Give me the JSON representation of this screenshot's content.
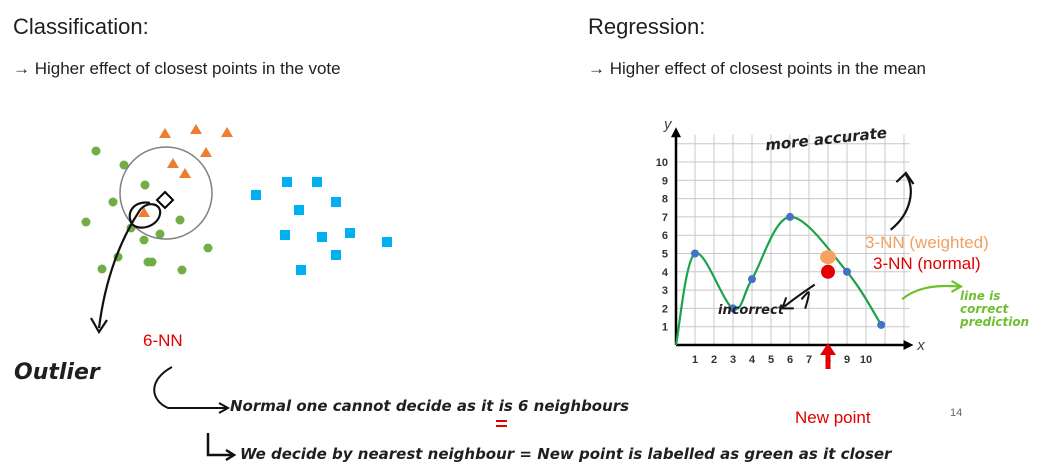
{
  "left": {
    "heading": "Classification:",
    "bullet": "→ Higher effect of closest points in the vote",
    "knn_label": "6-NN"
  },
  "right": {
    "heading": "Regression:",
    "bullet": "→ Higher effect of closest points in the mean",
    "label_weighted": "3-NN  (weighted)",
    "label_normal": "3-NN  (normal)",
    "new_point": "New point",
    "slide_number": "14"
  },
  "annotations": {
    "outlier": "Outlier",
    "more_accurate": "more accurate",
    "incorrect": "incorrect",
    "line_correct": [
      "line is",
      "correct",
      "prediction"
    ],
    "normal_note": "Normal one cannot decide as it is 6 neighbours",
    "nearest_note": "We decide by nearest neighbour = New point is labelled as green as it closer"
  },
  "colors": {
    "green_points": "#70ad47",
    "orange_points": "#ed7d31",
    "blue_points": "#00b0f0",
    "curve": "#1aa34a",
    "regression_points": "#4472c4",
    "red": "#e00000",
    "weighted": "#f4a460",
    "annotation_green": "#6fbf2f"
  },
  "chart_data": {
    "type": "line",
    "x_axis_label": "x",
    "y_axis_label": "y",
    "xticks": [
      "1",
      "2",
      "3",
      "4",
      "5",
      "6",
      "7",
      "8",
      "9",
      "10"
    ],
    "yticks": [
      "1",
      "2",
      "3",
      "4",
      "5",
      "6",
      "7",
      "8",
      "9",
      "10"
    ],
    "xlim": [
      0,
      11
    ],
    "ylim": [
      0,
      11
    ],
    "grid": true,
    "series": [
      {
        "points": [
          [
            0,
            0
          ],
          [
            1,
            5
          ],
          [
            3,
            2
          ],
          [
            4,
            3.6
          ],
          [
            6,
            7
          ],
          [
            9,
            4
          ],
          [
            10.8,
            1.1
          ]
        ]
      }
    ],
    "weighted_prediction": [
      8,
      4.8
    ],
    "normal_prediction": [
      8,
      4
    ],
    "new_point_x": 8
  }
}
